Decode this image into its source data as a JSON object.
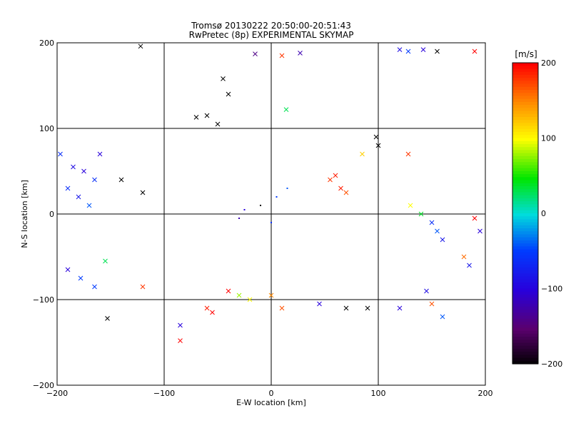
{
  "chart_data": {
    "type": "scatter",
    "title": "Tromsø 20130222 20:50:00-20:51:43",
    "subtitle": "RwPretec (8p) EXPERIMENTAL SKYMAP",
    "xlabel": "E-W location [km]",
    "ylabel": "N-S location [km]",
    "xlim": [
      -200,
      200
    ],
    "ylim": [
      -200,
      200
    ],
    "x_ticks": [
      -200,
      -100,
      0,
      100,
      200
    ],
    "y_ticks": [
      -200,
      -100,
      0,
      100,
      200
    ],
    "grid": true,
    "colorbar": {
      "label": "[m/s]",
      "range": [
        -200,
        200
      ],
      "ticks": [
        -200,
        -100,
        0,
        100,
        200
      ],
      "colormap": "rainbow (black-purple-blue-cyan-green-yellow-red)"
    },
    "marker_types": [
      "x",
      "dot"
    ],
    "points_sample": [
      {
        "x": -122,
        "y": 196,
        "v": -200,
        "m": "x"
      },
      {
        "x": -15,
        "y": 187,
        "v": -140,
        "m": "x"
      },
      {
        "x": 10,
        "y": 185,
        "v": 180,
        "m": "x"
      },
      {
        "x": 27,
        "y": 188,
        "v": -120,
        "m": "x"
      },
      {
        "x": 120,
        "y": 192,
        "v": -90,
        "m": "x"
      },
      {
        "x": 128,
        "y": 190,
        "v": -50,
        "m": "x"
      },
      {
        "x": 142,
        "y": 192,
        "v": -100,
        "m": "x"
      },
      {
        "x": 155,
        "y": 190,
        "v": -200,
        "m": "x"
      },
      {
        "x": 190,
        "y": 190,
        "v": 200,
        "m": "x"
      },
      {
        "x": -45,
        "y": 158,
        "v": -200,
        "m": "x"
      },
      {
        "x": -40,
        "y": 140,
        "v": -200,
        "m": "x"
      },
      {
        "x": -70,
        "y": 113,
        "v": -200,
        "m": "x"
      },
      {
        "x": -60,
        "y": 115,
        "v": -200,
        "m": "x"
      },
      {
        "x": -50,
        "y": 105,
        "v": -200,
        "m": "x"
      },
      {
        "x": 14,
        "y": 122,
        "v": 30,
        "m": "x"
      },
      {
        "x": 98,
        "y": 90,
        "v": -200,
        "m": "x"
      },
      {
        "x": 100,
        "y": 80,
        "v": -200,
        "m": "x"
      },
      {
        "x": -197,
        "y": 70,
        "v": -60,
        "m": "x"
      },
      {
        "x": -185,
        "y": 55,
        "v": -90,
        "m": "x"
      },
      {
        "x": -175,
        "y": 50,
        "v": -100,
        "m": "x"
      },
      {
        "x": -165,
        "y": 40,
        "v": -60,
        "m": "x"
      },
      {
        "x": -160,
        "y": 70,
        "v": -100,
        "m": "x"
      },
      {
        "x": -190,
        "y": 30,
        "v": -60,
        "m": "x"
      },
      {
        "x": -180,
        "y": 20,
        "v": -80,
        "m": "x"
      },
      {
        "x": -170,
        "y": 10,
        "v": -40,
        "m": "x"
      },
      {
        "x": -140,
        "y": 40,
        "v": -200,
        "m": "x"
      },
      {
        "x": -120,
        "y": 25,
        "v": -200,
        "m": "x"
      },
      {
        "x": 85,
        "y": 70,
        "v": 120,
        "m": "x"
      },
      {
        "x": 128,
        "y": 70,
        "v": 180,
        "m": "x"
      },
      {
        "x": 60,
        "y": 45,
        "v": 190,
        "m": "x"
      },
      {
        "x": 55,
        "y": 40,
        "v": 180,
        "m": "x"
      },
      {
        "x": 70,
        "y": 25,
        "v": 170,
        "m": "x"
      },
      {
        "x": 65,
        "y": 30,
        "v": 190,
        "m": "x"
      },
      {
        "x": 130,
        "y": 10,
        "v": 100,
        "m": "x"
      },
      {
        "x": 140,
        "y": 0,
        "v": 40,
        "m": "x"
      },
      {
        "x": 150,
        "y": -10,
        "v": -60,
        "m": "x"
      },
      {
        "x": 155,
        "y": -20,
        "v": -40,
        "m": "x"
      },
      {
        "x": 160,
        "y": -30,
        "v": -80,
        "m": "x"
      },
      {
        "x": 180,
        "y": -50,
        "v": 160,
        "m": "x"
      },
      {
        "x": 185,
        "y": -60,
        "v": -80,
        "m": "x"
      },
      {
        "x": 195,
        "y": -20,
        "v": -100,
        "m": "x"
      },
      {
        "x": 190,
        "y": -5,
        "v": 200,
        "m": "x"
      },
      {
        "x": -190,
        "y": -65,
        "v": -100,
        "m": "x"
      },
      {
        "x": -178,
        "y": -75,
        "v": -50,
        "m": "x"
      },
      {
        "x": -165,
        "y": -85,
        "v": -50,
        "m": "x"
      },
      {
        "x": -155,
        "y": -55,
        "v": 30,
        "m": "x"
      },
      {
        "x": -153,
        "y": -122,
        "v": -200,
        "m": "x"
      },
      {
        "x": -120,
        "y": -85,
        "v": 180,
        "m": "x"
      },
      {
        "x": -85,
        "y": -130,
        "v": -100,
        "m": "x"
      },
      {
        "x": -85,
        "y": -148,
        "v": 200,
        "m": "x"
      },
      {
        "x": -60,
        "y": -110,
        "v": 190,
        "m": "x"
      },
      {
        "x": -55,
        "y": -115,
        "v": 200,
        "m": "x"
      },
      {
        "x": -40,
        "y": -90,
        "v": 200,
        "m": "x"
      },
      {
        "x": -30,
        "y": -95,
        "v": 80,
        "m": "x"
      },
      {
        "x": -20,
        "y": -100,
        "v": 100,
        "m": "x"
      },
      {
        "x": 0,
        "y": -95,
        "v": 150,
        "m": "x"
      },
      {
        "x": 10,
        "y": -110,
        "v": 170,
        "m": "x"
      },
      {
        "x": 45,
        "y": -105,
        "v": -100,
        "m": "x"
      },
      {
        "x": 70,
        "y": -110,
        "v": -200,
        "m": "x"
      },
      {
        "x": 90,
        "y": -110,
        "v": -200,
        "m": "x"
      },
      {
        "x": 120,
        "y": -110,
        "v": -100,
        "m": "x"
      },
      {
        "x": 145,
        "y": -90,
        "v": -90,
        "m": "x"
      },
      {
        "x": 150,
        "y": -105,
        "v": 170,
        "m": "x"
      },
      {
        "x": 160,
        "y": -120,
        "v": -40,
        "m": "x"
      },
      {
        "x": -25,
        "y": 5,
        "v": -100,
        "m": "dot"
      },
      {
        "x": -10,
        "y": 10,
        "v": -200,
        "m": "dot"
      },
      {
        "x": 5,
        "y": 20,
        "v": -50,
        "m": "dot"
      },
      {
        "x": -30,
        "y": -5,
        "v": -120,
        "m": "dot"
      },
      {
        "x": 0,
        "y": -10,
        "v": -60,
        "m": "dot"
      },
      {
        "x": 15,
        "y": 30,
        "v": -40,
        "m": "dot"
      }
    ]
  }
}
